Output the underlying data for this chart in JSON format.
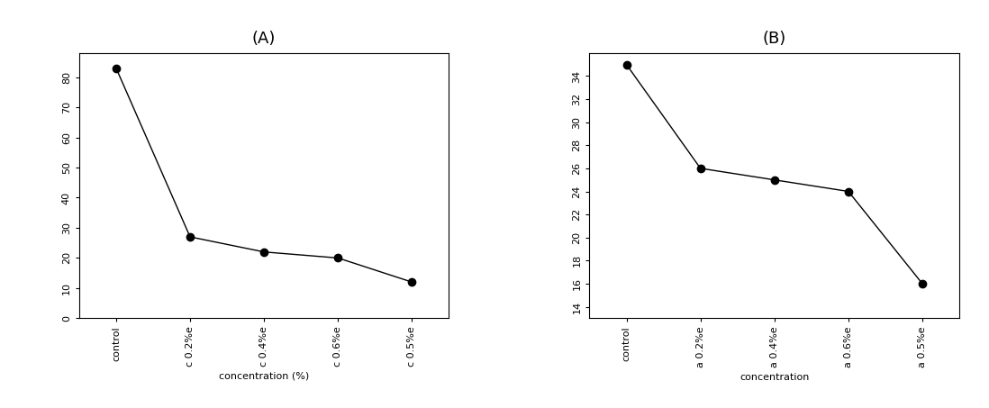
{
  "A": {
    "title": "(A)",
    "x_labels": [
      "control",
      "c 0.2%e",
      "c 0.4%e",
      "c 0.6%e",
      "c 0.5%e"
    ],
    "y_values": [
      83,
      27,
      22,
      20,
      12
    ],
    "yticks": [
      0,
      10,
      20,
      30,
      40,
      50,
      60,
      70,
      80
    ],
    "ylim": [
      0,
      88
    ],
    "xlabel": "concentration (%)"
  },
  "B": {
    "title": "(B)",
    "x_labels": [
      "control",
      "a 0.2%e",
      "a 0.4%e",
      "a 0.6%e",
      "a 0.5%e"
    ],
    "y_values": [
      35,
      26,
      25,
      24,
      16
    ],
    "yticks": [
      14,
      16,
      18,
      20,
      22,
      24,
      26,
      28,
      30,
      32,
      34
    ],
    "ylim": [
      13,
      36
    ],
    "xlabel": "concentration"
  },
  "line_color": "#000000",
  "marker": "o",
  "markersize": 6,
  "linewidth": 1.0,
  "title_fontsize": 13,
  "tick_fontsize": 8,
  "xlabel_fontsize": 8,
  "background_color": "#ffffff",
  "ytick_rotation": 90,
  "xtick_rotation": 90
}
